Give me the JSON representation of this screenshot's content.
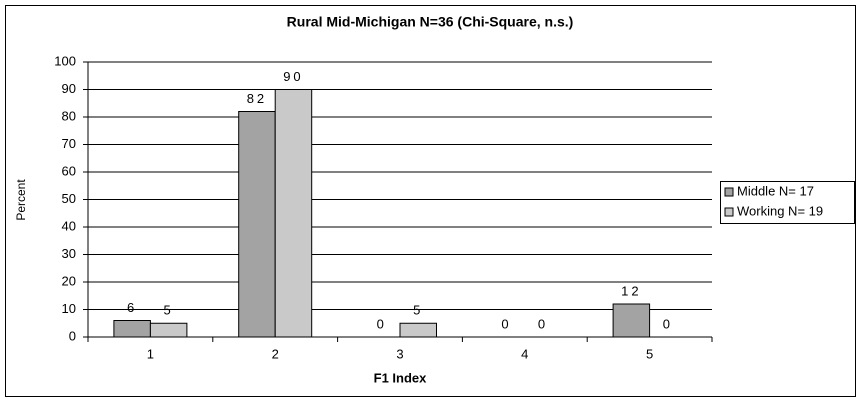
{
  "chart_data": {
    "type": "bar",
    "title": "Rural Mid-Michigan N=36 (Chi-Square, n.s.)",
    "x_label": "F1 Index",
    "y_label": "Percent",
    "categories": [
      "1",
      "2",
      "3",
      "4",
      "5"
    ],
    "series": [
      {
        "name": "Middle N= 17",
        "color": "#a3a3a3",
        "values": [
          6,
          82,
          0,
          0,
          12
        ]
      },
      {
        "name": "Working N= 19",
        "color": "#c9c9c9",
        "values": [
          5,
          90,
          5,
          0,
          0
        ]
      }
    ],
    "ylim": [
      0,
      100
    ],
    "yticks": [
      0,
      10,
      20,
      30,
      40,
      50,
      60,
      70,
      80,
      90,
      100
    ],
    "grid": true,
    "legend": "right"
  }
}
